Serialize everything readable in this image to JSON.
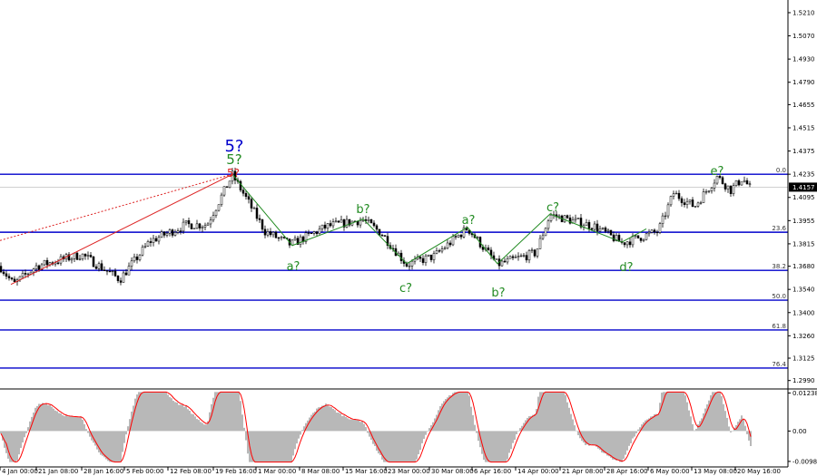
{
  "chart_data": {
    "type": "candlestick",
    "price_axis": {
      "ticks": [
        "1.5210",
        "1.5070",
        "1.4930",
        "1.4790",
        "1.4655",
        "1.4515",
        "1.4375",
        "1.4235",
        "1.4095",
        "1.3955",
        "1.3815",
        "1.3680",
        "1.3540",
        "1.3400",
        "1.3260",
        "1.3125",
        "1.2990"
      ],
      "range": [
        1.295,
        1.527
      ],
      "current_price": "1.4157"
    },
    "time_axis": {
      "labels": [
        "4 Jan 00:00",
        "21 Jan 08:00",
        "28 Jan 16:00",
        "5 Feb 00:00",
        "12 Feb 08:00",
        "19 Feb 16:00",
        "1 Mar 00:00",
        "8 Mar 08:00",
        "15 Mar 16:00",
        "23 Mar 00:00",
        "30 Mar 08:00",
        "6 Apr 16:00",
        "14 Apr 00:00",
        "21 Apr 08:00",
        "28 Apr 16:00",
        "6 May 00:00",
        "13 May 08:00",
        "20 May 16:00"
      ]
    },
    "fib_levels": [
      {
        "label": "0.0",
        "price": 1.4235
      },
      {
        "label": "23.6",
        "price": 1.3885
      },
      {
        "label": "38.2",
        "price": 1.3655
      },
      {
        "label": "50.0",
        "price": 1.3475
      },
      {
        "label": "61.8",
        "price": 1.3295
      },
      {
        "label": "76.4",
        "price": 1.3065
      }
    ],
    "wave_labels": [
      {
        "text": "5?",
        "color": "#0000cc",
        "size": "large"
      },
      {
        "text": "5?",
        "color": "#228b22",
        "size": "large"
      },
      {
        "text": "5?",
        "color": "#dd2222",
        "size": "small"
      },
      {
        "text": "a?",
        "color": "#228b22"
      },
      {
        "text": "b?",
        "color": "#228b22"
      },
      {
        "text": "c?",
        "color": "#228b22"
      },
      {
        "text": "a?",
        "color": "#228b22"
      },
      {
        "text": "b?",
        "color": "#228b22"
      },
      {
        "text": "c?",
        "color": "#228b22"
      },
      {
        "text": "d?",
        "color": "#228b22"
      },
      {
        "text": "e?",
        "color": "#228b22"
      }
    ],
    "oscillator": {
      "ticks": [
        "0.01238",
        "0.00",
        "-0.00988"
      ],
      "range": [
        -0.0105,
        0.0131
      ]
    },
    "colors": {
      "level_line": "#0000cc",
      "wave_line": "#228b22",
      "impulse_line": "#dd2222",
      "signal_line": "#ff0000",
      "histogram": "#b8b8b8"
    }
  }
}
